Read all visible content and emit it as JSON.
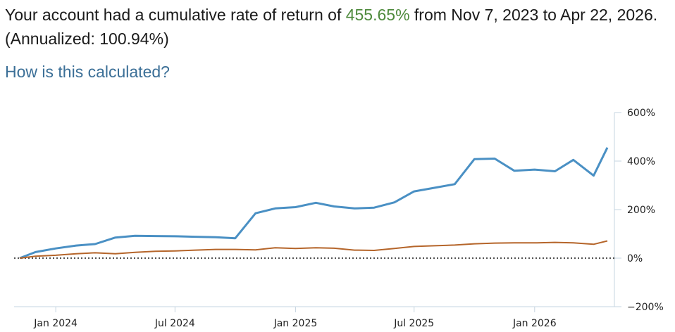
{
  "summary": {
    "prefix": "Your account had a cumulative rate of return of ",
    "cumulative_return": "455.65%",
    "middle": " from Nov 7, 2023 to Apr 22, 2026. (Annualized: ",
    "annualized": "100.94%",
    "suffix": ")",
    "return_color": "#4e8a3c"
  },
  "help_link": {
    "label": "How is this calculated?",
    "color": "#3b6f97"
  },
  "chart_data": {
    "type": "line",
    "xlabel": "",
    "ylabel": "",
    "x_ticks": [
      "Jan 2024",
      "Jul 2024",
      "Jan 2025",
      "Jul 2025",
      "Jan 2026"
    ],
    "x_tick_dates": [
      "2024-01-01",
      "2024-07-01",
      "2025-01-01",
      "2025-07-01",
      "2026-01-01"
    ],
    "y_ticks": [
      "600%",
      "400%",
      "200%",
      "0%",
      "−200%"
    ],
    "y_tick_values": [
      600,
      400,
      200,
      0,
      -200
    ],
    "ylim": [
      -200,
      600
    ],
    "xlim": [
      "2023-11-07",
      "2026-04-22"
    ],
    "zero_line": "dotted",
    "grid": false,
    "series": [
      {
        "color": "#4a90c4",
        "points": [
          [
            "2023-11-07",
            0
          ],
          [
            "2023-12-01",
            25
          ],
          [
            "2024-01-01",
            40
          ],
          [
            "2024-02-01",
            52
          ],
          [
            "2024-03-01",
            58
          ],
          [
            "2024-04-01",
            85
          ],
          [
            "2024-05-01",
            92
          ],
          [
            "2024-06-01",
            91
          ],
          [
            "2024-07-01",
            90
          ],
          [
            "2024-08-01",
            88
          ],
          [
            "2024-09-01",
            86
          ],
          [
            "2024-10-01",
            82
          ],
          [
            "2024-11-01",
            185
          ],
          [
            "2024-12-01",
            205
          ],
          [
            "2025-01-01",
            210
          ],
          [
            "2025-02-01",
            228
          ],
          [
            "2025-03-01",
            213
          ],
          [
            "2025-04-01",
            205
          ],
          [
            "2025-05-01",
            208
          ],
          [
            "2025-06-01",
            230
          ],
          [
            "2025-07-01",
            275
          ],
          [
            "2025-08-01",
            290
          ],
          [
            "2025-09-01",
            305
          ],
          [
            "2025-10-01",
            408
          ],
          [
            "2025-11-01",
            410
          ],
          [
            "2025-12-01",
            360
          ],
          [
            "2026-01-01",
            365
          ],
          [
            "2026-02-01",
            358
          ],
          [
            "2026-03-01",
            405
          ],
          [
            "2026-04-01",
            340
          ],
          [
            "2026-04-22",
            455.65
          ]
        ]
      },
      {
        "color": "#b5652a",
        "points": [
          [
            "2023-11-07",
            0
          ],
          [
            "2023-12-01",
            8
          ],
          [
            "2024-01-01",
            12
          ],
          [
            "2024-02-01",
            18
          ],
          [
            "2024-03-01",
            22
          ],
          [
            "2024-04-01",
            18
          ],
          [
            "2024-05-01",
            24
          ],
          [
            "2024-06-01",
            28
          ],
          [
            "2024-07-01",
            30
          ],
          [
            "2024-08-01",
            33
          ],
          [
            "2024-09-01",
            36
          ],
          [
            "2024-10-01",
            36
          ],
          [
            "2024-11-01",
            34
          ],
          [
            "2024-12-01",
            43
          ],
          [
            "2025-01-01",
            40
          ],
          [
            "2025-02-01",
            43
          ],
          [
            "2025-03-01",
            41
          ],
          [
            "2025-04-01",
            33
          ],
          [
            "2025-05-01",
            32
          ],
          [
            "2025-06-01",
            40
          ],
          [
            "2025-07-01",
            48
          ],
          [
            "2025-08-01",
            51
          ],
          [
            "2025-09-01",
            54
          ],
          [
            "2025-10-01",
            59
          ],
          [
            "2025-11-01",
            62
          ],
          [
            "2025-12-01",
            63
          ],
          [
            "2026-01-01",
            63
          ],
          [
            "2026-02-01",
            65
          ],
          [
            "2026-03-01",
            63
          ],
          [
            "2026-04-01",
            57
          ],
          [
            "2026-04-22",
            71
          ]
        ]
      }
    ]
  }
}
